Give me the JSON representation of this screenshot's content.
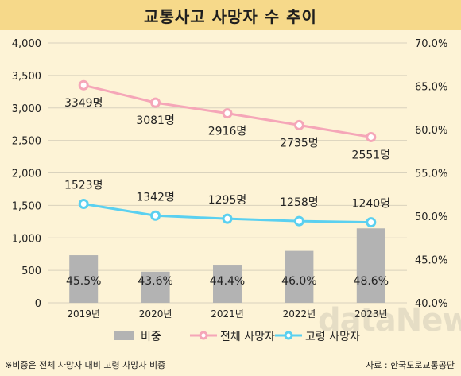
{
  "title": "교통사고 사망자 수 추이",
  "footnote": "※비중은 전체 사망자 대비 고령 사망자 비중",
  "source": "자료 : 한국도로교통공단",
  "watermark": "dataNews",
  "chart_data": {
    "type": "bar+line",
    "categories": [
      "2019년",
      "2020년",
      "2021년",
      "2022년",
      "2023년"
    ],
    "left_axis": {
      "min": 0,
      "max": 4000,
      "ticks": [
        "0",
        "500",
        "1,000",
        "1,500",
        "2,000",
        "2,500",
        "3,000",
        "3,500",
        "4,000"
      ]
    },
    "right_axis": {
      "min": 40.0,
      "max": 70.0,
      "ticks": [
        "40.0%",
        "45.0%",
        "50.0%",
        "55.0%",
        "60.0%",
        "65.0%",
        "70.0%"
      ]
    },
    "grid": true,
    "legend_position": "bottom",
    "series": [
      {
        "name": "비중",
        "kind": "bar",
        "axis": "right",
        "color": "#b3b3b3",
        "values": [
          45.5,
          43.6,
          44.4,
          46.0,
          48.6
        ],
        "labels": [
          "45.5%",
          "43.6%",
          "44.4%",
          "46.0%",
          "48.6%"
        ]
      },
      {
        "name": "전체 사망자",
        "kind": "line",
        "axis": "left",
        "color": "#f5a6b8",
        "values": [
          3349,
          3081,
          2916,
          2735,
          2551
        ],
        "labels": [
          "3349명",
          "3081명",
          "2916명",
          "2735명",
          "2551명"
        ]
      },
      {
        "name": "고령 사망자",
        "kind": "line",
        "axis": "left",
        "color": "#5ad0f0",
        "values": [
          1523,
          1342,
          1295,
          1258,
          1240
        ],
        "labels": [
          "1523명",
          "1342명",
          "1295명",
          "1258명",
          "1240명"
        ]
      }
    ]
  }
}
